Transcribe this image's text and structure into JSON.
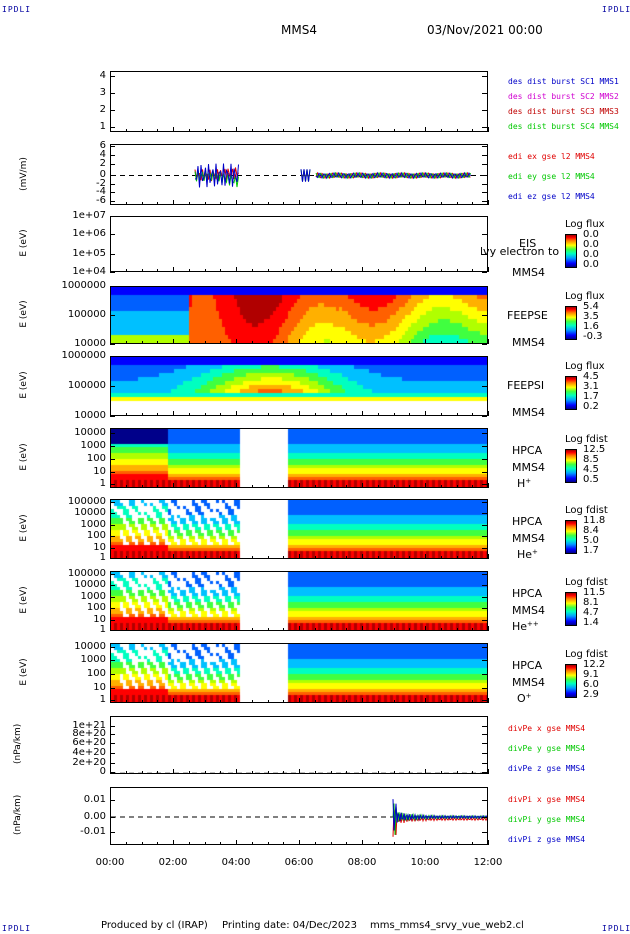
{
  "header": {
    "corner_tl": "IPDLI",
    "corner_tr": "IPDLI",
    "corner_bl": "IPDLI",
    "corner_br": "IPDLI",
    "spacecraft": "MMS4",
    "date": "03/Nov/2021 00:00"
  },
  "footer": {
    "produced": "Produced by cl (IRAP)",
    "printing": "Printing date: 04/Dec/2023",
    "file": "mms_mms4_srvy_vue_web2.cl"
  },
  "chart_data": [
    {
      "type": "line",
      "title": "",
      "ylabel": "",
      "yticks": [
        "4",
        "3",
        "2",
        "1"
      ],
      "ylim": [
        0.7,
        4.5
      ],
      "legend": [
        {
          "name": "des dist burst SC1 MMS1",
          "color": "#0000c8"
        },
        {
          "name": "des dist burst SC2 MMS2",
          "color": "#d000d0"
        },
        {
          "name": "des dist burst SC3 MMS3",
          "color": "#c00000"
        },
        {
          "name": "des dist burst SC4 MMS4",
          "color": "#00c800"
        }
      ]
    },
    {
      "type": "line",
      "ylabel": "(mV/m)",
      "yticks": [
        "6",
        "4",
        "2",
        "0",
        "-2",
        "-4",
        "-6"
      ],
      "ylim": [
        -6.5,
        6.5
      ],
      "legend": [
        {
          "name": "edi ex gse l2 MMS4",
          "color": "#e00000"
        },
        {
          "name": "edi ey gse l2 MMS4",
          "color": "#00c800"
        },
        {
          "name": "edi ez gse l2 MMS4",
          "color": "#0000c8"
        }
      ]
    },
    {
      "type": "heatmap",
      "ylabel": "E (eV)",
      "yticks": [
        "1e+07",
        "1e+06",
        "1e+05",
        "1e+04"
      ],
      "instrument": "EIS",
      "instrument_overlay": "lvy electron to",
      "sc": "MMS4",
      "cbar_title": "Log flux",
      "cbar_ticks": [
        "0.0",
        "0.0",
        "0.0",
        "0.0"
      ]
    },
    {
      "type": "heatmap",
      "ylabel": "E (eV)",
      "yticks": [
        "1000000",
        "100000",
        "10000"
      ],
      "instrument": "FEEPSE",
      "sc": "MMS4",
      "cbar_title": "Log flux",
      "cbar_ticks": [
        "5.4",
        "3.5",
        "1.6",
        "-0.3"
      ]
    },
    {
      "type": "heatmap",
      "ylabel": "E (eV)",
      "yticks": [
        "1000000",
        "100000",
        "10000"
      ],
      "instrument": "FEEPSI",
      "sc": "MMS4",
      "cbar_title": "Log flux",
      "cbar_ticks": [
        "4.5",
        "3.1",
        "1.7",
        "0.2"
      ]
    },
    {
      "type": "heatmap",
      "ylabel": "E (eV)",
      "yticks": [
        "10000",
        "1000",
        "100",
        "10",
        "1"
      ],
      "instrument": "HPCA",
      "sc": "MMS4",
      "species": "H",
      "charge": "+",
      "cbar_title": "Log fdist",
      "cbar_ticks": [
        "12.5",
        "8.5",
        "4.5",
        "0.5"
      ]
    },
    {
      "type": "heatmap",
      "ylabel": "E (eV)",
      "yticks": [
        "100000",
        "10000",
        "1000",
        "100",
        "10",
        "1"
      ],
      "instrument": "HPCA",
      "sc": "MMS4",
      "species": "He",
      "charge": "+",
      "cbar_title": "Log fdist",
      "cbar_ticks": [
        "11.8",
        "8.4",
        "5.0",
        "1.7"
      ]
    },
    {
      "type": "heatmap",
      "ylabel": "E (eV)",
      "yticks": [
        "100000",
        "10000",
        "1000",
        "100",
        "10",
        "1"
      ],
      "instrument": "HPCA",
      "sc": "MMS4",
      "species": "He",
      "charge": "++",
      "cbar_title": "Log fdist",
      "cbar_ticks": [
        "11.5",
        "8.1",
        "4.7",
        "1.4"
      ]
    },
    {
      "type": "heatmap",
      "ylabel": "E (eV)",
      "yticks": [
        "10000",
        "1000",
        "100",
        "10",
        "1"
      ],
      "instrument": "HPCA",
      "sc": "MMS4",
      "species": "O",
      "charge": "+",
      "cbar_title": "Log fdist",
      "cbar_ticks": [
        "12.2",
        "9.1",
        "6.0",
        "2.9"
      ]
    },
    {
      "type": "line",
      "ylabel": "(nPa/km)",
      "yticks": [
        "1e+21",
        "8e+20",
        "6e+20",
        "4e+20",
        "2e+20",
        "0"
      ],
      "legend": [
        {
          "name": "divPe x gse MMS4",
          "color": "#e00000"
        },
        {
          "name": "divPe y gse MMS4",
          "color": "#00c800"
        },
        {
          "name": "divPe z gse MMS4",
          "color": "#0000c8"
        }
      ]
    },
    {
      "type": "line",
      "ylabel": "(nPa/km)",
      "yticks": [
        "0.01",
        "0.00",
        "-0.01"
      ],
      "ylim": [
        -0.018,
        0.018
      ],
      "legend": [
        {
          "name": "divPi x gse MMS4",
          "color": "#e00000"
        },
        {
          "name": "divPi y gse MMS4",
          "color": "#00c800"
        },
        {
          "name": "divPi z gse MMS4",
          "color": "#0000c8"
        }
      ]
    }
  ],
  "xaxis": {
    "ticks": [
      "00:00",
      "02:00",
      "04:00",
      "06:00",
      "08:00",
      "10:00",
      "12:00"
    ]
  }
}
